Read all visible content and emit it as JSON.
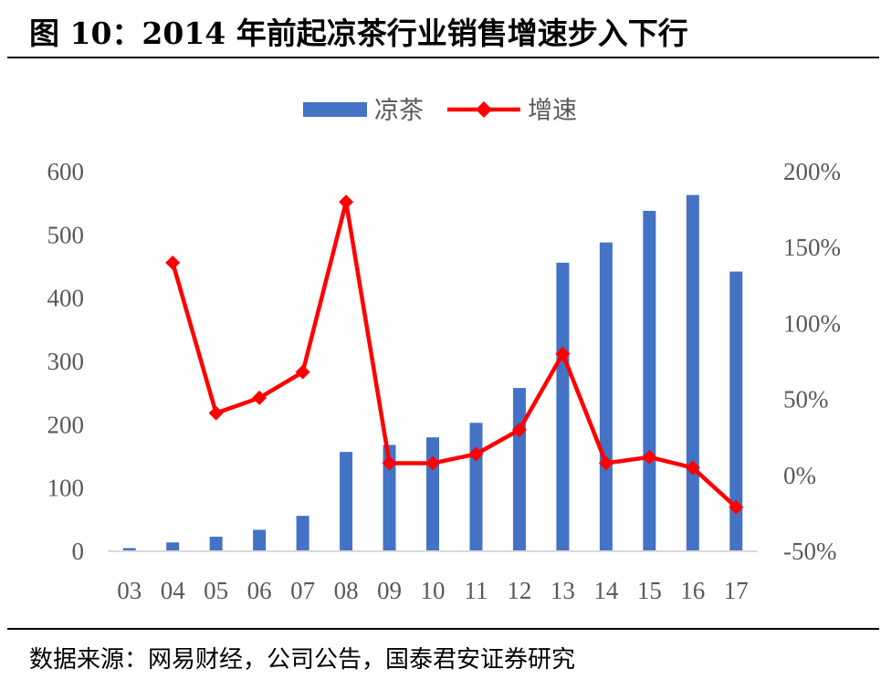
{
  "title": "图 10：2014 年前起凉茶行业销售增速步入下行",
  "source": "数据来源：网易财经，公司公告，国泰君安证券研究",
  "chart_data": {
    "type": "bar+line",
    "categories": [
      "03",
      "04",
      "05",
      "06",
      "07",
      "08",
      "09",
      "10",
      "11",
      "12",
      "13",
      "14",
      "15",
      "16",
      "17"
    ],
    "series": [
      {
        "name": "凉茶",
        "type": "bar",
        "axis": "left",
        "color": "#4472C4",
        "values": [
          5,
          14,
          23,
          34,
          56,
          157,
          168,
          180,
          203,
          258,
          456,
          488,
          538,
          563,
          442
        ]
      },
      {
        "name": "增速",
        "type": "line",
        "axis": "right",
        "color": "#FF0000",
        "marker": "diamond",
        "values": [
          null,
          140,
          41,
          51,
          68,
          180,
          8,
          8,
          14,
          30,
          80,
          8,
          12,
          5,
          -21
        ]
      }
    ],
    "left_axis": {
      "ylim": [
        0,
        600
      ],
      "ticks": [
        "0",
        "100",
        "200",
        "300",
        "400",
        "500",
        "600"
      ]
    },
    "right_axis": {
      "ylim": [
        -50,
        200
      ],
      "unit": "%",
      "ticks": [
        "-50%",
        "0%",
        "50%",
        "100%",
        "150%",
        "200%"
      ]
    },
    "legend": "top-center",
    "grid": false
  }
}
